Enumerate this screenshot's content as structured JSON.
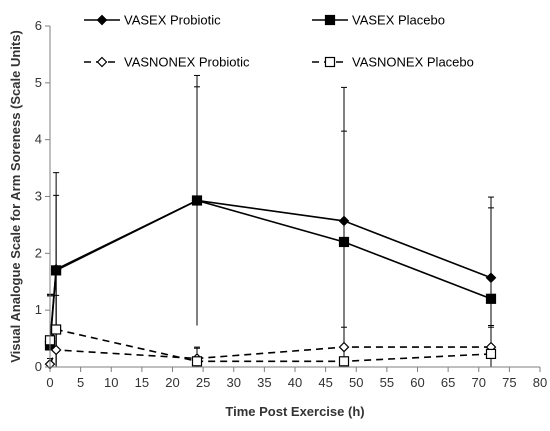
{
  "chart_data": {
    "type": "line",
    "title": "",
    "xlabel": "Time Post Exercise (h)",
    "ylabel": "Visual Analogue Scale for Arm Soreness (Scale Units)",
    "xlim": [
      0,
      80
    ],
    "ylim": [
      0,
      6
    ],
    "xticks": [
      "0",
      "5",
      "10",
      "15",
      "20",
      "25",
      "30",
      "35",
      "40",
      "45",
      "50",
      "55",
      "60",
      "65",
      "70",
      "75",
      "80"
    ],
    "yticks": [
      "0",
      "1",
      "2",
      "3",
      "4",
      "5",
      "6"
    ],
    "grid": false,
    "legend_position": "top",
    "series": [
      {
        "name": "VASEX Probiotic",
        "line": "solid",
        "marker": "filled-diamond",
        "x": [
          0,
          1,
          24,
          48,
          72
        ],
        "y": [
          0.45,
          1.72,
          2.93,
          2.57,
          1.57
        ],
        "err": [
          0.8,
          1.7,
          2.2,
          2.35,
          1.42
        ]
      },
      {
        "name": "VASEX Placebo",
        "line": "solid",
        "marker": "filled-square",
        "x": [
          0,
          1,
          24,
          48,
          72
        ],
        "y": [
          0.38,
          1.7,
          2.93,
          2.2,
          1.2
        ],
        "err": [
          0.9,
          1.32,
          2.0,
          1.95,
          1.6
        ]
      },
      {
        "name": "VASNONEX Probiotic",
        "line": "dashed",
        "marker": "open-diamond",
        "x": [
          0,
          1,
          24,
          48,
          72
        ],
        "y": [
          0.05,
          0.3,
          0.15,
          0.35,
          0.35
        ],
        "err": [
          0.1,
          0.3,
          0.18,
          0.35,
          0.35
        ]
      },
      {
        "name": "VASNONEX Placebo",
        "line": "dashed",
        "marker": "open-square",
        "x": [
          0,
          1,
          24,
          48,
          72
        ],
        "y": [
          0.47,
          0.66,
          0.1,
          0.1,
          0.23
        ],
        "err": [
          0.8,
          0.6,
          0.25,
          0.25,
          0.5
        ]
      }
    ],
    "colors": {
      "series": "#000000",
      "axis": "#7f7f7f",
      "text": "#333333"
    }
  }
}
